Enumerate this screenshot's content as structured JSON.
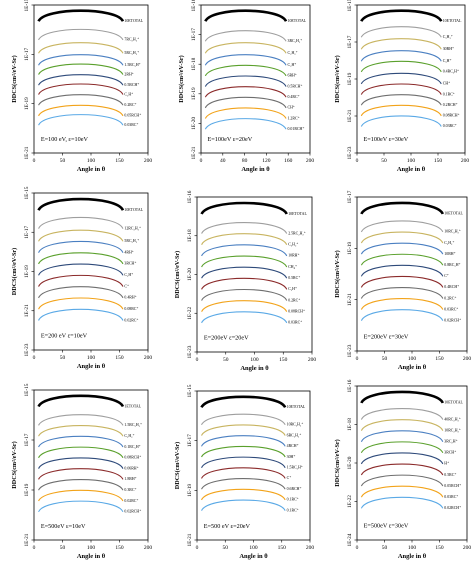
{
  "chart_data": [
    {
      "type": "line",
      "title": "",
      "xlabel": "Angle in θ",
      "ylabel": "DDCS(cm²/eV-Sr)",
      "xlim": [
        0,
        200
      ],
      "x_ticks": [
        "0",
        "50",
        "100",
        "150",
        "200"
      ],
      "y_ticks": [
        "1E-15",
        "1E-17",
        "1E-19",
        "1E-21"
      ],
      "y_scale": "log",
      "annotation_E": "E=100 eV,",
      "annotation_eps": "ε=10eV",
      "grid": false,
      "legend": "right",
      "series": [
        {
          "name": "10ETOTAL",
          "color": "#000000",
          "values": [
            100,
            100
          ]
        },
        {
          "name": "7RC₂H₂⁺",
          "color": "#9e9e9e",
          "values": [
            86,
            86
          ]
        },
        {
          "name": "5RC₂H₂⁺",
          "color": "#c8b460",
          "values": [
            76,
            76
          ]
        },
        {
          "name": "1.5RC₂H⁺",
          "color": "#4a7fc1",
          "values": [
            67,
            67
          ]
        },
        {
          "name": "2RH⁺",
          "color": "#5aa02c",
          "values": [
            60,
            60
          ]
        },
        {
          "name": "0.5RCH⁺",
          "color": "#2e4a7a",
          "values": [
            52,
            52
          ]
        },
        {
          "name": "C₂H⁺",
          "color": "#8b2a2a",
          "values": [
            45,
            45
          ]
        },
        {
          "name": "0.2RC⁺",
          "color": "#6e6e6e",
          "values": [
            37,
            37
          ]
        },
        {
          "name": "0.05RCH⁺",
          "color": "#f2a31a",
          "values": [
            29,
            29
          ]
        },
        {
          "name": "0.03RC⁺",
          "color": "#5aa9e6",
          "values": [
            22,
            22
          ]
        }
      ]
    },
    {
      "type": "line",
      "title": "",
      "xlabel": "Angle in θ",
      "ylabel": "DDCS(cm²/eV-Sr)",
      "xlim": [
        0,
        200
      ],
      "x_ticks": [
        "0",
        "40",
        "80",
        "120",
        "160",
        "200"
      ],
      "y_ticks": [
        "1E-16",
        "1E-17",
        "1E-18",
        "1E-19",
        "1E-20",
        "1E-21"
      ],
      "y_scale": "log",
      "annotation_E": "E=100eV",
      "annotation_eps": "ε=20eV",
      "grid": false,
      "legend": "right",
      "series": [
        {
          "name": "10ETOTAL",
          "color": "#000000",
          "values": [
            100,
            100
          ]
        },
        {
          "name": "3RC₂H₂⁺",
          "color": "#9e9e9e",
          "values": [
            85,
            85
          ]
        },
        {
          "name": "C₂H₂⁺",
          "color": "#c8b460",
          "values": [
            76,
            76
          ]
        },
        {
          "name": "C₂H⁺",
          "color": "#4a7fc1",
          "values": [
            67,
            67
          ]
        },
        {
          "name": "6RH⁺",
          "color": "#5aa02c",
          "values": [
            59,
            59
          ]
        },
        {
          "name": "0.5RCH⁺",
          "color": "#2e4a7a",
          "values": [
            51,
            51
          ]
        },
        {
          "name": "0.4RC⁺",
          "color": "#8b2a2a",
          "values": [
            43,
            43
          ]
        },
        {
          "name": "CH⁺",
          "color": "#6e6e6e",
          "values": [
            35,
            35
          ]
        },
        {
          "name": "1.2RC⁺",
          "color": "#f2a31a",
          "values": [
            27,
            27
          ]
        },
        {
          "name": "0.01RCH⁺",
          "color": "#5aa9e6",
          "values": [
            19,
            19
          ]
        }
      ]
    },
    {
      "type": "line",
      "title": "",
      "xlabel": "Angle in θ",
      "ylabel": "DDCS(cm²/eV-Sr)",
      "xlim": [
        0,
        200
      ],
      "x_ticks": [
        "0",
        "50",
        "100",
        "150",
        "200"
      ],
      "y_ticks": [
        "1E-15",
        "1E-17",
        "1E-19",
        "1E-21",
        "1E-23"
      ],
      "y_scale": "log",
      "annotation_E": "E=100eV",
      "annotation_eps": "ε=30eV",
      "grid": false,
      "legend": "right",
      "series": [
        {
          "name": "10ETOTAL",
          "color": "#000000",
          "values": [
            100,
            100
          ]
        },
        {
          "name": "C₂H₂⁺",
          "color": "#9e9e9e",
          "values": [
            88,
            88
          ]
        },
        {
          "name": "30RH⁺",
          "color": "#c8b460",
          "values": [
            79,
            79
          ]
        },
        {
          "name": "C₂H⁺",
          "color": "#4a7fc1",
          "values": [
            70,
            70
          ]
        },
        {
          "name": "0.4RC₂H⁺",
          "color": "#5aa02c",
          "values": [
            62,
            62
          ]
        },
        {
          "name": "CH⁺",
          "color": "#2e4a7a",
          "values": [
            53,
            53
          ]
        },
        {
          "name": "0.1RC⁺",
          "color": "#8b2a2a",
          "values": [
            45,
            45
          ]
        },
        {
          "name": "0.2RCH⁺",
          "color": "#6e6e6e",
          "values": [
            37,
            37
          ]
        },
        {
          "name": "0.08RCH⁺",
          "color": "#f2a31a",
          "values": [
            29,
            29
          ]
        },
        {
          "name": "0.03RC⁺",
          "color": "#5aa9e6",
          "values": [
            21,
            21
          ]
        }
      ]
    },
    {
      "type": "line",
      "title": "",
      "xlabel": "Angle in θ",
      "ylabel": "DDCS(cm²/eV-Sr)",
      "xlim": [
        0,
        200
      ],
      "x_ticks": [
        "0",
        "50",
        "100",
        "150",
        "200"
      ],
      "y_ticks": [
        "1E-15",
        "1E-17",
        "1E-19",
        "1E-21",
        "1E-23"
      ],
      "y_scale": "log",
      "annotation_E": "E=200 eV",
      "annotation_eps": "ε=10eV",
      "grid": false,
      "legend": "right",
      "series": [
        {
          "name": "10ETOTAL",
          "color": "#000000",
          "values": [
            100,
            100
          ]
        },
        {
          "name": "12RC₂H₂⁺",
          "color": "#9e9e9e",
          "values": [
            87,
            87
          ]
        },
        {
          "name": "5RC₂H₂⁺",
          "color": "#c8b460",
          "values": [
            78,
            78
          ]
        },
        {
          "name": "4RH⁺",
          "color": "#4a7fc1",
          "values": [
            70,
            70
          ]
        },
        {
          "name": "3RCH⁺",
          "color": "#5aa02c",
          "values": [
            62,
            62
          ]
        },
        {
          "name": "C₂H⁺",
          "color": "#2e4a7a",
          "values": [
            54,
            54
          ]
        },
        {
          "name": "C⁺",
          "color": "#8b2a2a",
          "values": [
            46,
            46
          ]
        },
        {
          "name": "0.4RH⁺",
          "color": "#6e6e6e",
          "values": [
            38,
            38
          ]
        },
        {
          "name": "0.08RC⁺",
          "color": "#f2a31a",
          "values": [
            30,
            30
          ]
        },
        {
          "name": "0.02RC⁺",
          "color": "#5aa9e6",
          "values": [
            22,
            22
          ]
        }
      ]
    },
    {
      "type": "line",
      "title": "",
      "xlabel": "Angle in θ",
      "ylabel": "DDCS(cm²/eV-Sr)",
      "xlim": [
        0,
        200
      ],
      "x_ticks": [
        "0",
        "50",
        "100",
        "150",
        "200"
      ],
      "y_ticks": [
        "1E-16",
        "1E-18",
        "1E-20",
        "1E-22",
        "1E-23"
      ],
      "y_scale": "log",
      "annotation_E": "E=200eV",
      "annotation_eps": "ε=20eV",
      "grid": false,
      "legend": "right",
      "series": [
        {
          "name": "10ETOTAL",
          "color": "#000000",
          "values": [
            100,
            100
          ]
        },
        {
          "name": "2.5RC₂H₂⁺",
          "color": "#9e9e9e",
          "values": [
            86,
            86
          ]
        },
        {
          "name": "C₂H₂⁺",
          "color": "#c8b460",
          "values": [
            78,
            78
          ]
        },
        {
          "name": "10RH⁺",
          "color": "#4a7fc1",
          "values": [
            70,
            70
          ]
        },
        {
          "name": "CH₄⁺",
          "color": "#5aa02c",
          "values": [
            62,
            62
          ]
        },
        {
          "name": "0.5RC⁺",
          "color": "#2e4a7a",
          "values": [
            54,
            54
          ]
        },
        {
          "name": "C₂H⁺",
          "color": "#8b2a2a",
          "values": [
            46,
            46
          ]
        },
        {
          "name": "0.2RC⁺",
          "color": "#6e6e6e",
          "values": [
            38,
            38
          ]
        },
        {
          "name": "0.08RCH⁺",
          "color": "#f2a31a",
          "values": [
            30,
            30
          ]
        },
        {
          "name": "0.03RC⁺",
          "color": "#5aa9e6",
          "values": [
            22,
            22
          ]
        }
      ]
    },
    {
      "type": "line",
      "title": "",
      "xlabel": "Angle in θ",
      "ylabel": "DDCS(cm²/eV-Sr)",
      "xlim": [
        0,
        200
      ],
      "x_ticks": [
        "0",
        "50",
        "100",
        "150",
        "200"
      ],
      "y_ticks": [
        "1E-17",
        "1E-19",
        "1E-21",
        "1E-23"
      ],
      "y_scale": "log",
      "annotation_E": "E=200eV",
      "annotation_eps": "ε=30eV",
      "grid": false,
      "legend": "right",
      "series": [
        {
          "name": "10ETOTAL",
          "color": "#000000",
          "values": [
            100,
            100
          ]
        },
        {
          "name": "10RC₂H₂⁺",
          "color": "#9e9e9e",
          "values": [
            87,
            87
          ]
        },
        {
          "name": "C₂H₂⁺",
          "color": "#c8b460",
          "values": [
            79,
            79
          ]
        },
        {
          "name": "10RH⁺",
          "color": "#4a7fc1",
          "values": [
            71,
            71
          ]
        },
        {
          "name": "0.8RC₂H⁺",
          "color": "#5aa02c",
          "values": [
            63,
            63
          ]
        },
        {
          "name": "C⁺",
          "color": "#2e4a7a",
          "values": [
            55,
            55
          ]
        },
        {
          "name": "0.4RCH⁺",
          "color": "#8b2a2a",
          "values": [
            47,
            47
          ]
        },
        {
          "name": "0.2RC⁺",
          "color": "#6e6e6e",
          "values": [
            39,
            39
          ]
        },
        {
          "name": "0.03RC⁺",
          "color": "#f2a31a",
          "values": [
            31,
            31
          ]
        },
        {
          "name": "0.02RCH⁺",
          "color": "#5aa9e6",
          "values": [
            23,
            23
          ]
        }
      ]
    },
    {
      "type": "line",
      "title": "",
      "xlabel": "Angle in θ",
      "ylabel": "DDCS(cm²/eV-Sr)",
      "xlim": [
        0,
        200
      ],
      "x_ticks": [
        "0",
        "50",
        "100",
        "150",
        "200"
      ],
      "y_ticks": [
        "1E-15",
        "1E-17",
        "1E-19",
        "1E-21"
      ],
      "y_scale": "log",
      "annotation_E": "E=500eV",
      "annotation_eps": "ε=10eV",
      "grid": false,
      "legend": "right",
      "series": [
        {
          "name": "1ETOTAL",
          "color": "#000000",
          "values": [
            100,
            100
          ]
        },
        {
          "name": "1.5RC₂H₂⁺",
          "color": "#9e9e9e",
          "values": [
            86,
            86
          ]
        },
        {
          "name": "C₂H₂⁺",
          "color": "#c8b460",
          "values": [
            78,
            78
          ]
        },
        {
          "name": "0.1RC₂H⁺",
          "color": "#4a7fc1",
          "values": [
            70,
            70
          ]
        },
        {
          "name": "0.08RCH⁺",
          "color": "#5aa02c",
          "values": [
            62,
            62
          ]
        },
        {
          "name": "0.06RH⁺",
          "color": "#2e4a7a",
          "values": [
            54,
            54
          ]
        },
        {
          "name": "1.8RH⁺",
          "color": "#8b2a2a",
          "values": [
            46,
            46
          ]
        },
        {
          "name": "0.3RC⁺",
          "color": "#6e6e6e",
          "values": [
            38,
            38
          ]
        },
        {
          "name": "0.02RC⁺",
          "color": "#f2a31a",
          "values": [
            30,
            30
          ]
        },
        {
          "name": "0.02RCH⁺",
          "color": "#5aa9e6",
          "values": [
            22,
            22
          ]
        }
      ]
    },
    {
      "type": "line",
      "title": "",
      "xlabel": "Angle in θ",
      "ylabel": "DDCS(cm²/eV-Sr)",
      "xlim": [
        0,
        200
      ],
      "x_ticks": [
        "0",
        "50",
        "100",
        "150",
        "200"
      ],
      "y_ticks": [
        "1E-15",
        "1E-17",
        "1E-19",
        "1E-21"
      ],
      "y_scale": "log",
      "annotation_E": "E=500 eV",
      "annotation_eps": "ε=20eV",
      "grid": false,
      "legend": "right",
      "series": [
        {
          "name": "10ETOTAL",
          "color": "#000000",
          "values": [
            100,
            100
          ]
        },
        {
          "name": "10RC₂H₂⁺",
          "color": "#9e9e9e",
          "values": [
            87,
            87
          ]
        },
        {
          "name": "6RC₂H₂⁺",
          "color": "#c8b460",
          "values": [
            79,
            79
          ]
        },
        {
          "name": "4RCH⁺",
          "color": "#4a7fc1",
          "values": [
            71,
            71
          ]
        },
        {
          "name": "30H⁺",
          "color": "#5aa02c",
          "values": [
            63,
            63
          ]
        },
        {
          "name": "1.5RC₂H⁺",
          "color": "#2e4a7a",
          "values": [
            55,
            55
          ]
        },
        {
          "name": "C⁺",
          "color": "#8b2a2a",
          "values": [
            47,
            47
          ]
        },
        {
          "name": "0.6RCH⁺",
          "color": "#6e6e6e",
          "values": [
            39,
            39
          ]
        },
        {
          "name": "0.1RC⁺",
          "color": "#f2a31a",
          "values": [
            31,
            31
          ]
        },
        {
          "name": "0.1RC⁺",
          "color": "#5aa9e6",
          "values": [
            23,
            23
          ]
        }
      ]
    },
    {
      "type": "line",
      "title": "",
      "xlabel": "Angle in θ",
      "ylabel": "DDCS(cm²/eV-Sr)",
      "xlim": [
        0,
        200
      ],
      "x_ticks": [
        "0",
        "50",
        "100",
        "150",
        "200"
      ],
      "y_ticks": [
        "1E-16",
        "1E-18",
        "1E-20",
        "1E-22",
        "1E-24"
      ],
      "y_scale": "log",
      "annotation_E": "E=500eV",
      "annotation_eps": "ε=30eV",
      "grid": false,
      "legend": "right",
      "series": [
        {
          "name": "10ETOTAL",
          "color": "#000000",
          "values": [
            100,
            100
          ]
        },
        {
          "name": "40RC₂H₂⁺",
          "color": "#9e9e9e",
          "values": [
            88,
            88
          ]
        },
        {
          "name": "10RC₂H₂⁺",
          "color": "#c8b460",
          "values": [
            80,
            80
          ]
        },
        {
          "name": "3RC₂H⁺",
          "color": "#4a7fc1",
          "values": [
            72,
            72
          ]
        },
        {
          "name": "3RCH⁺",
          "color": "#5aa02c",
          "values": [
            64,
            64
          ]
        },
        {
          "name": "H⁺",
          "color": "#2e4a7a",
          "values": [
            56,
            56
          ]
        },
        {
          "name": "0.5RC⁺",
          "color": "#8b2a2a",
          "values": [
            48,
            48
          ]
        },
        {
          "name": "0.05RCH⁺",
          "color": "#6e6e6e",
          "values": [
            40,
            40
          ]
        },
        {
          "name": "0.03RC⁺",
          "color": "#f2a31a",
          "values": [
            32,
            32
          ]
        },
        {
          "name": "0.02RCH⁺",
          "color": "#5aa9e6",
          "values": [
            24,
            24
          ]
        }
      ]
    }
  ]
}
